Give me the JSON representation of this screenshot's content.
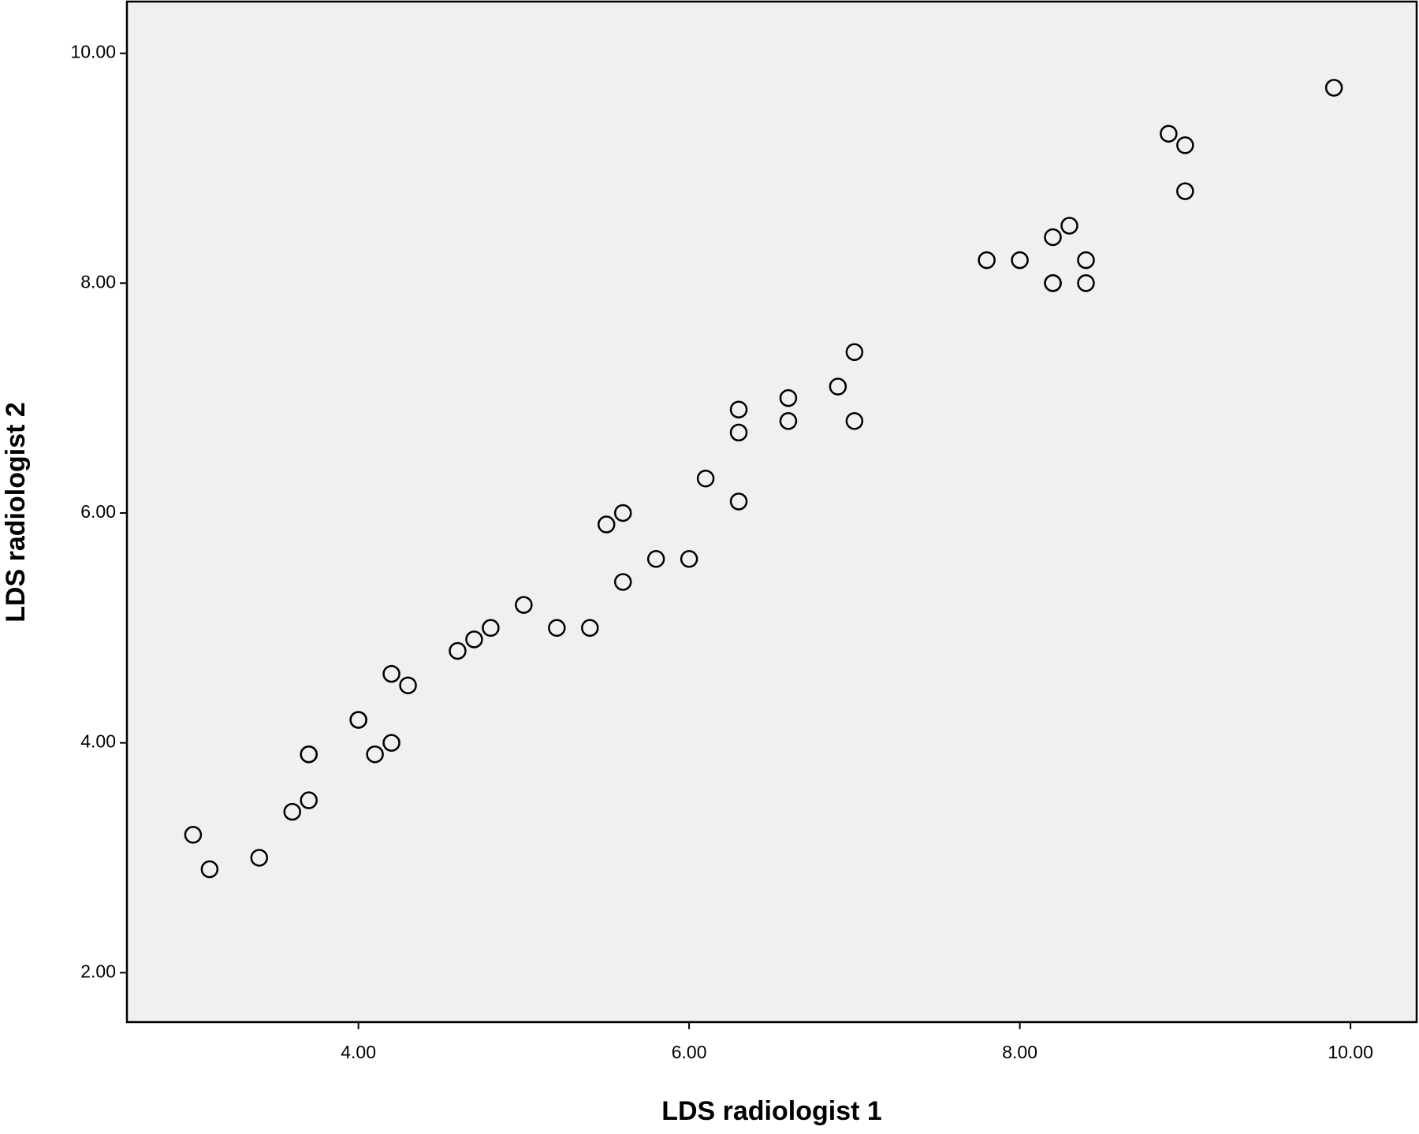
{
  "chart_data": {
    "type": "scatter",
    "x_label": "LDS radiologist 1",
    "y_label": "LDS radiologist 2",
    "xlim": [
      2.6,
      10.4
    ],
    "ylim": [
      1.57,
      10.45
    ],
    "xticks": [
      {
        "value": 4,
        "label": "4.00"
      },
      {
        "value": 6,
        "label": "6.00"
      },
      {
        "value": 8,
        "label": "8.00"
      },
      {
        "value": 10,
        "label": "10.00"
      }
    ],
    "yticks": [
      {
        "value": 2,
        "label": "2.00"
      },
      {
        "value": 4,
        "label": "4.00"
      },
      {
        "value": 6,
        "label": "6.00"
      },
      {
        "value": 8,
        "label": "8.00"
      },
      {
        "value": 10,
        "label": "10.00"
      }
    ],
    "grid": false,
    "color": "#000000",
    "background": "#f0f0f0",
    "x": [
      9.9,
      8.9,
      9.0,
      9.0,
      8.3,
      8.2,
      7.8,
      8.0,
      8.4,
      8.2,
      8.2,
      8.4,
      7.0,
      6.9,
      6.6,
      6.3,
      6.6,
      7.0,
      6.3,
      6.1,
      6.3,
      5.6,
      5.5,
      5.8,
      6.0,
      5.6,
      5.0,
      4.8,
      5.2,
      5.4,
      4.7,
      4.6,
      4.2,
      4.3,
      4.0,
      4.0,
      4.2,
      3.7,
      3.7,
      4.1,
      3.7,
      3.6,
      3.0,
      3.4,
      3.1
    ],
    "y": [
      9.7,
      9.3,
      9.2,
      8.8,
      8.5,
      8.4,
      8.2,
      8.2,
      8.2,
      8.0,
      8.0,
      8.0,
      7.4,
      7.1,
      7.0,
      6.9,
      6.8,
      6.8,
      6.7,
      6.3,
      6.1,
      6.0,
      5.9,
      5.6,
      5.6,
      5.4,
      5.2,
      5.0,
      5.0,
      5.0,
      4.9,
      4.8,
      4.6,
      4.5,
      4.2,
      4.2,
      4.0,
      3.9,
      3.9,
      3.9,
      3.5,
      3.4,
      3.2,
      3.0,
      2.9
    ]
  }
}
